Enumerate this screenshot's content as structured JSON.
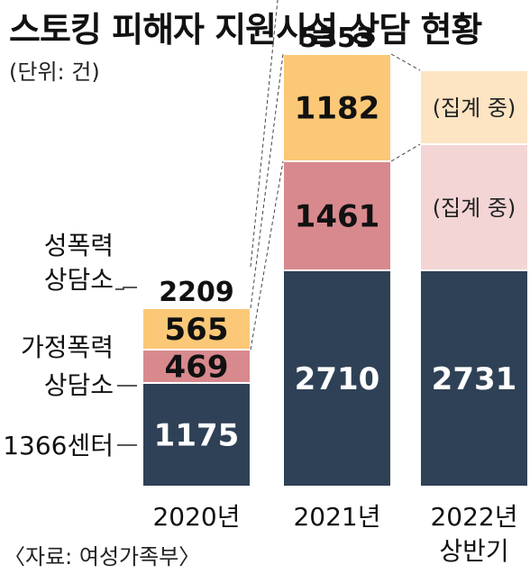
{
  "title": "스토킹 피해자 지원시설 상담 현황",
  "unit_note": "(단위: 건)",
  "source": "〈자료: 여성가족부〉",
  "colors": {
    "center1366": "#2f4156",
    "domestic": "#d8898e",
    "sexual": "#fbc877",
    "domestic_light": "#f3d5d6",
    "sexual_light": "#fde4c3",
    "line": "#444444"
  },
  "chart_data": {
    "type": "bar",
    "stacked": true,
    "categories": [
      "2020년",
      "2021년",
      "2022년 상반기"
    ],
    "series": [
      {
        "name": "1366센터",
        "values": [
          1175,
          2710,
          2731
        ]
      },
      {
        "name": "가정폭력 상담소",
        "values": [
          469,
          1461,
          null
        ]
      },
      {
        "name": "성폭력 상담소",
        "values": [
          565,
          1182,
          null
        ]
      }
    ],
    "totals": [
      2209,
      5353,
      null
    ],
    "pending_label": "(집계 중)"
  }
}
